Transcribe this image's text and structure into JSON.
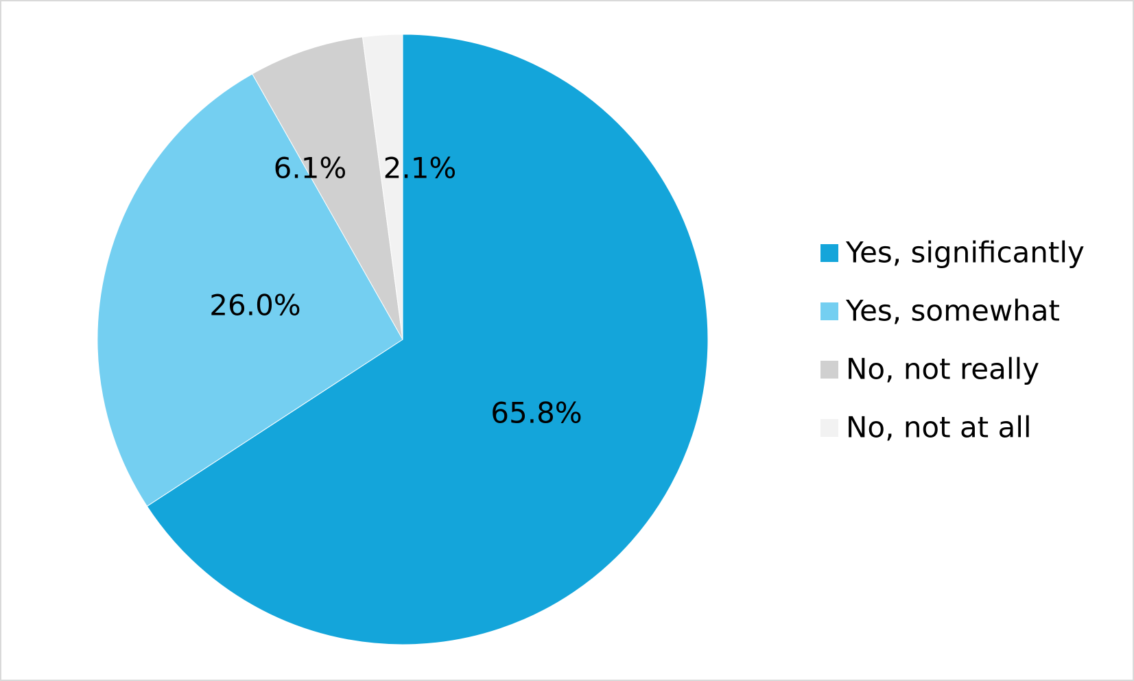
{
  "chart_data": {
    "type": "pie",
    "categories": [
      "Yes, significantly",
      "Yes, somewhat",
      "No, not really",
      "No, not at all"
    ],
    "values": [
      65.8,
      26.0,
      6.1,
      2.1
    ],
    "value_labels": [
      "65.8%",
      "26.0%",
      "6.1%",
      "2.1%"
    ],
    "colors": [
      "#14a5da",
      "#74cff1",
      "#d0d0d0",
      "#f2f2f2"
    ],
    "legend": "right"
  }
}
